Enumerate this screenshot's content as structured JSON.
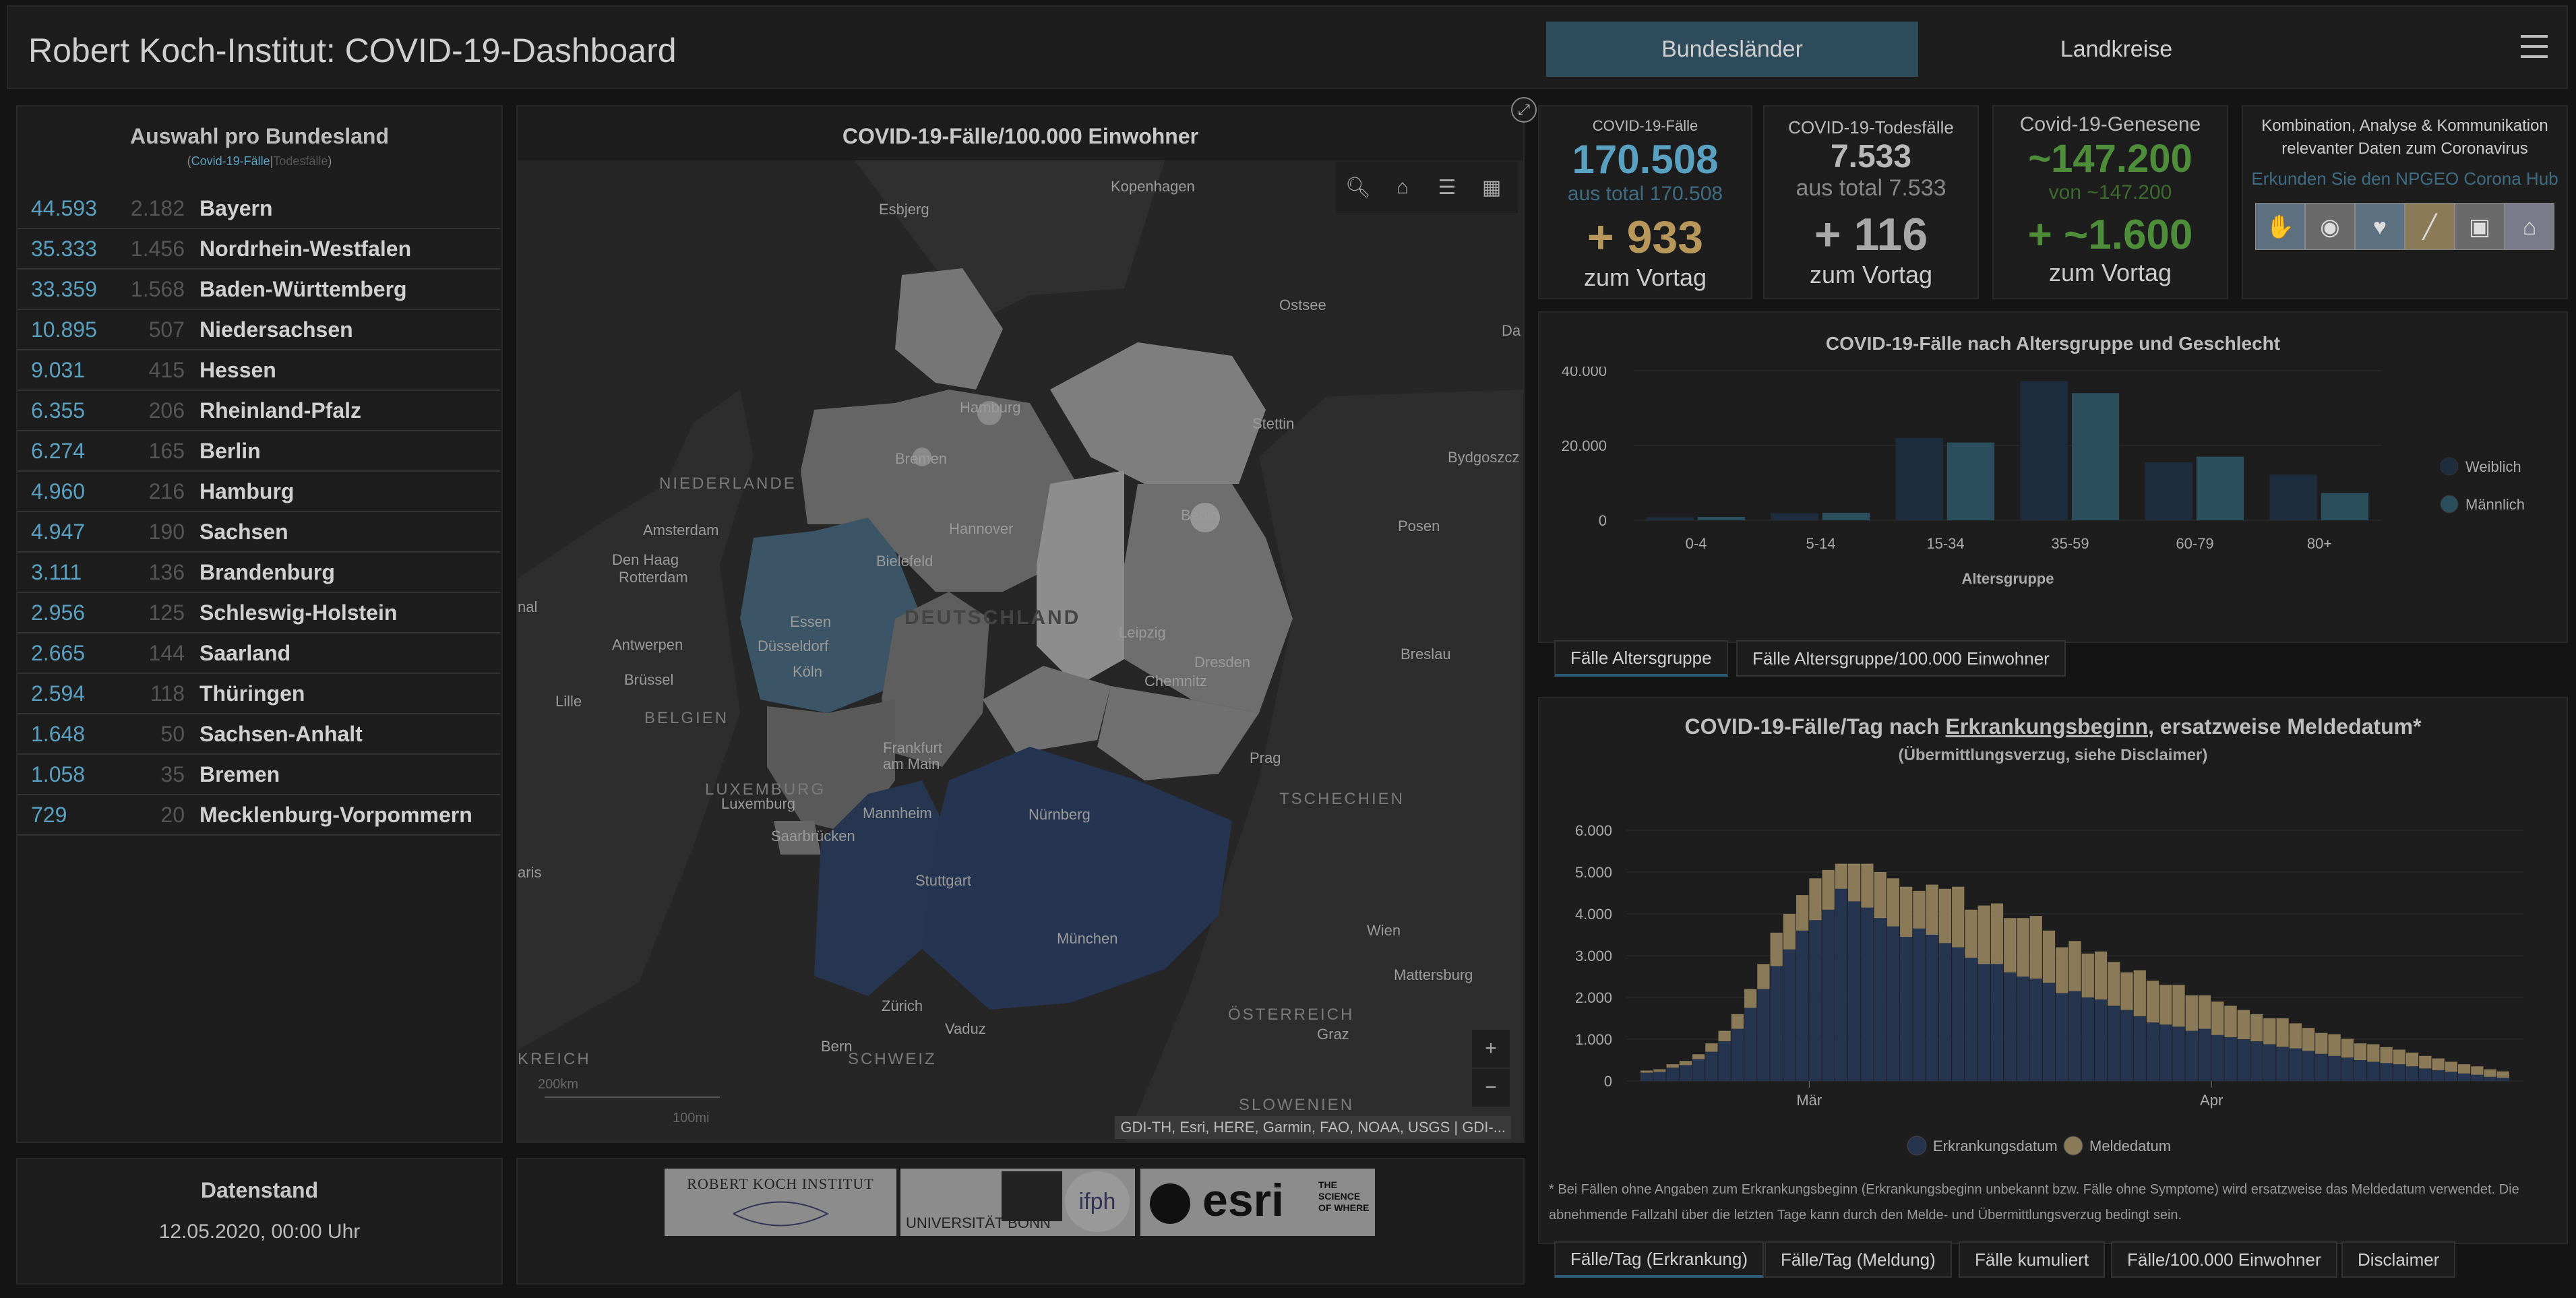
{
  "header": {
    "title": "Robert Koch-Institut: COVID-19-Dashboard",
    "tabs": [
      {
        "label": "Bundesländer"
      },
      {
        "label": "Landkreise"
      }
    ]
  },
  "left": {
    "title": "Auswahl pro Bundesland",
    "sub_cases": "Covid-19-Fälle",
    "sub_sep": "|",
    "sub_deaths": "Todesfälle",
    "rows": [
      {
        "cases": "44.593",
        "deaths": "2.182",
        "name": "Bayern"
      },
      {
        "cases": "35.333",
        "deaths": "1.456",
        "name": "Nordrhein-Westfalen"
      },
      {
        "cases": "33.359",
        "deaths": "1.568",
        "name": "Baden-Württemberg"
      },
      {
        "cases": "10.895",
        "deaths": "507",
        "name": "Niedersachsen"
      },
      {
        "cases": "9.031",
        "deaths": "415",
        "name": "Hessen"
      },
      {
        "cases": "6.355",
        "deaths": "206",
        "name": "Rheinland-Pfalz"
      },
      {
        "cases": "6.274",
        "deaths": "165",
        "name": "Berlin"
      },
      {
        "cases": "4.960",
        "deaths": "216",
        "name": "Hamburg"
      },
      {
        "cases": "4.947",
        "deaths": "190",
        "name": "Sachsen"
      },
      {
        "cases": "3.111",
        "deaths": "136",
        "name": "Brandenburg"
      },
      {
        "cases": "2.956",
        "deaths": "125",
        "name": "Schleswig-Holstein"
      },
      {
        "cases": "2.665",
        "deaths": "144",
        "name": "Saarland"
      },
      {
        "cases": "2.594",
        "deaths": "118",
        "name": "Thüringen"
      },
      {
        "cases": "1.648",
        "deaths": "50",
        "name": "Sachsen-Anhalt"
      },
      {
        "cases": "1.058",
        "deaths": "35",
        "name": "Bremen"
      },
      {
        "cases": "729",
        "deaths": "20",
        "name": "Mecklenburg-Vorpommern"
      }
    ]
  },
  "datenstand": {
    "title": "Datenstand",
    "value": "12.05.2020, 00:00 Uhr"
  },
  "map": {
    "title": "COVID-19-Fälle/100.000 Einwohner",
    "attribution": "GDI-TH, Esri, HERE, Garmin, FAO, NOAA, USGS | GDI-...",
    "scale_km": "200km",
    "scale_mi": "100mi",
    "labels": {
      "esbjerg": "Esbjerg",
      "kopenhagen": "Kopenhagen",
      "ostsee": "Ostsee",
      "hamburg": "Hamburg",
      "bremen": "Bremen",
      "stettin": "Stettin",
      "bydgoszcz": "Bydgoszcz",
      "niederlande": "NIEDERLANDE",
      "amsterdam": "Amsterdam",
      "hannover": "Hannover",
      "berlin": "Berlin",
      "posen": "Posen",
      "denhaag": "Den Haag",
      "rotterdam": "Rotterdam",
      "bielefeld": "Bielefeld",
      "deutschland": "DEUTSCHLAND",
      "essen": "Essen",
      "duesseldorf": "Düsseldorf",
      "leipzig": "Leipzig",
      "antwerpen": "Antwerpen",
      "koeln": "Köln",
      "dresden": "Dresden",
      "breslau": "Breslau",
      "bruessel": "Brüssel",
      "chemnitz": "Chemnitz",
      "lille": "Lille",
      "belgien": "BELGIEN",
      "frankfurt": "Frankfurt am Main",
      "prag": "Prag",
      "luxemburg_country": "LUXEMBURG",
      "luxemburg": "Luxemburg",
      "tschechien": "TSCHECHIEN",
      "mannheim": "Mannheim",
      "nuernberg": "Nürnberg",
      "saarbruecken": "Saarbrücken",
      "stuttgart": "Stuttgart",
      "paris": "aris",
      "muenchen": "München",
      "wien": "Wien",
      "mattersburg": "Mattersburg",
      "zuerich": "Zürich",
      "vaduz": "Vaduz",
      "oesterreich": "ÖSTERREICH",
      "bern": "Bern",
      "schweiz": "SCHWEIZ",
      "graz": "Graz",
      "frankreich": "KREICH",
      "slowenien": "SLOWENIEN",
      "nal": "nal",
      "da": "Da"
    }
  },
  "kpis": {
    "cases": {
      "label": "COVID-19-Fälle",
      "value": "170.508",
      "total": "aus total 170.508",
      "delta": "+ 933",
      "delta_label": "zum Vortag",
      "color": "#5aa0c0",
      "delta_color": "#b8975a"
    },
    "deaths": {
      "label": "COVID-19-Todesfälle",
      "value": "7.533",
      "total": "aus total 7.533",
      "delta": "+ 116",
      "delta_label": "zum Vortag",
      "color": "#b8b8b8"
    },
    "recovered": {
      "label": "Covid-19-Genesene",
      "value": "~147.200",
      "total": "von ~147.200",
      "delta": "+ ~1.600",
      "delta_label": "zum Vortag",
      "color": "#4e8d3a"
    }
  },
  "hub": {
    "text": "Kombination, Analyse & Kommunikation relevanter Daten zum Coronavirus",
    "link": "Erkunden Sie den NPGEO Corona Hub"
  },
  "age_chart": {
    "title": "COVID-19-Fälle nach Altersgruppe und Geschlecht",
    "tabs": [
      {
        "label": "Fälle Altersgruppe"
      },
      {
        "label": "Fälle Altersgruppe/100.000 Einwohner"
      }
    ]
  },
  "daily_chart": {
    "title_pre": "COVID-19-Fälle/Tag nach ",
    "title_link": "Erkrankungsbeginn",
    "title_post": ", ersatzweise Meldedatum*",
    "subtitle": "(Übermittlungsverzug, siehe Disclaimer)",
    "footnote": "* Bei Fällen ohne Angaben zum Erkrankungsbeginn (Erkrankungsbeginn unbekannt bzw. Fälle ohne Symptome) wird ersatzweise das Meldedatum verwendet. Die abnehmende Fallzahl über die letzten Tage kann durch den Melde- und Übermittlungsverzug bedingt sein.",
    "tabs": [
      {
        "label": "Fälle/Tag (Erkrankung)"
      },
      {
        "label": "Fälle/Tag (Meldung)"
      },
      {
        "label": "Fälle kumuliert"
      },
      {
        "label": "Fälle/100.000 Einwohner"
      },
      {
        "label": "Disclaimer"
      }
    ]
  },
  "logos": {
    "rki": "ROBERT KOCH INSTITUT",
    "bonn": "UNIVERSITÄT BONN",
    "esri": "esri",
    "esri_tag": "THE SCIENCE OF WHERE"
  },
  "chart_data": [
    {
      "type": "bar",
      "title": "COVID-19-Fälle nach Altersgruppe und Geschlecht",
      "xlabel": "Altersgruppe",
      "ylabel": "",
      "categories": [
        "0-4",
        "5-14",
        "15-34",
        "35-59",
        "60-79",
        "80+"
      ],
      "series": [
        {
          "name": "Weiblich",
          "values": [
            800,
            1900,
            22000,
            37200,
            15500,
            12200
          ],
          "color": "#1e2d3d"
        },
        {
          "name": "Männlich",
          "values": [
            900,
            2000,
            20800,
            34000,
            17000,
            7300
          ],
          "color": "#2b4e5d"
        }
      ],
      "ylim": [
        0,
        40000
      ],
      "yticks": [
        "0",
        "20.000",
        "40.000"
      ],
      "legend": "right"
    },
    {
      "type": "bar",
      "stacked": true,
      "title": "COVID-19-Fälle/Tag nach Erkrankungsbeginn, ersatzweise Meldedatum*",
      "xlabel": "",
      "ylabel": "",
      "ylim": [
        0,
        6000
      ],
      "yticks": [
        "0",
        "1.000",
        "2.000",
        "3.000",
        "4.000",
        "5.000",
        "6.000"
      ],
      "xticks": [
        {
          "label": "Mär",
          "index": 13
        },
        {
          "label": "Apr",
          "index": 44
        }
      ],
      "legend": "bottom",
      "series": [
        {
          "name": "Erkrankungsdatum",
          "color": "#25344f",
          "values": [
            200,
            220,
            320,
            380,
            520,
            700,
            950,
            1250,
            1750,
            2200,
            2750,
            3150,
            3600,
            3850,
            4100,
            4600,
            4300,
            4150,
            3900,
            3700,
            3450,
            3650,
            3500,
            3300,
            3200,
            2950,
            2800,
            2800,
            2600,
            2500,
            2450,
            2350,
            2100,
            2150,
            2000,
            1950,
            1800,
            1700,
            1550,
            1400,
            1350,
            1300,
            1200,
            1250,
            1100,
            1050,
            1000,
            950,
            880,
            820,
            780,
            720,
            650,
            600,
            560,
            500,
            460,
            430,
            400,
            350,
            300,
            260,
            220,
            180,
            150,
            100,
            80
          ]
        },
        {
          "name": "Meldedatum",
          "color": "#8a7a57",
          "values": [
            50,
            60,
            80,
            100,
            120,
            200,
            250,
            350,
            450,
            600,
            800,
            850,
            850,
            1000,
            950,
            600,
            900,
            1050,
            1100,
            1150,
            1200,
            900,
            1200,
            1300,
            1450,
            1150,
            1400,
            1450,
            1300,
            1400,
            1500,
            1250,
            1100,
            1200,
            1050,
            1150,
            1050,
            900,
            1100,
            1000,
            950,
            1000,
            850,
            800,
            800,
            750,
            700,
            650,
            620,
            680,
            600,
            550,
            500,
            520,
            450,
            400,
            420,
            380,
            350,
            330,
            300,
            280,
            240,
            220,
            200,
            180,
            150
          ]
        }
      ]
    }
  ]
}
